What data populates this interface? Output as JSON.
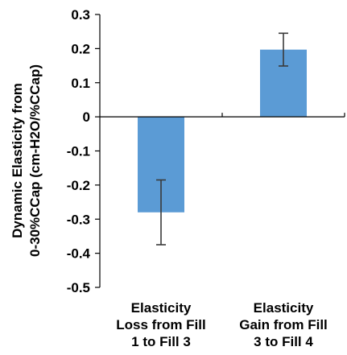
{
  "chart_data": {
    "type": "bar",
    "categories": [
      [
        "Elasticity",
        "Loss from Fill",
        "1 to Fill 3"
      ],
      [
        "Elasticity",
        "Gain from Fill",
        "3 to Fill 4"
      ]
    ],
    "values": [
      -0.28,
      0.197
    ],
    "error": [
      0.095,
      0.048
    ],
    "title": "",
    "xlabel": "",
    "ylabel": [
      "Dynamic Elasticity from",
      "0-30%CCap (cm-H2O/%CCap)"
    ],
    "ylim": [
      -0.5,
      0.3
    ],
    "yticks": [
      0.3,
      0.2,
      0.1,
      0,
      -0.1,
      -0.2,
      -0.3,
      -0.4,
      -0.5
    ],
    "ytick_labels": [
      "0.3",
      "0.2",
      "0.1",
      "0",
      "-0.1",
      "-0.2",
      "-0.3",
      "-0.4",
      "-0.5"
    ],
    "grid": false,
    "legend": "none",
    "colors": {
      "bar": "#5b9bd5",
      "axis": "#000000",
      "error_bar": "#3a3a3a"
    }
  }
}
